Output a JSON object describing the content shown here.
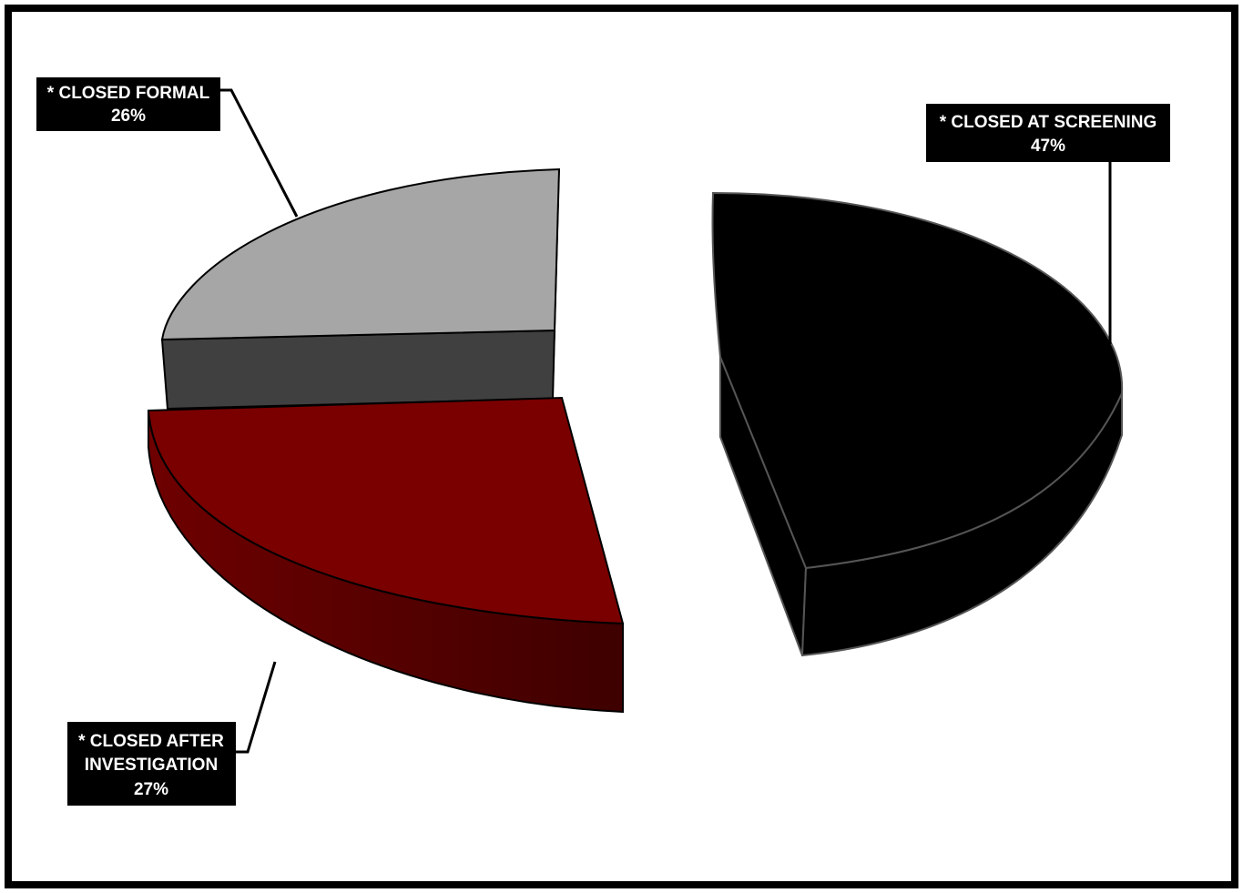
{
  "chart_data": {
    "type": "pie",
    "title": "",
    "categories": [
      "* CLOSED AT SCREENING",
      "* CLOSED FORMAL",
      "* CLOSED AFTER INVESTIGATION"
    ],
    "values": [
      47,
      26,
      27
    ],
    "value_labels": [
      "47%",
      "26%",
      "27%"
    ],
    "colors": [
      "#000000",
      "#a6a6a6",
      "#7a0000"
    ],
    "style": "3d-exploded",
    "legend": "none"
  }
}
